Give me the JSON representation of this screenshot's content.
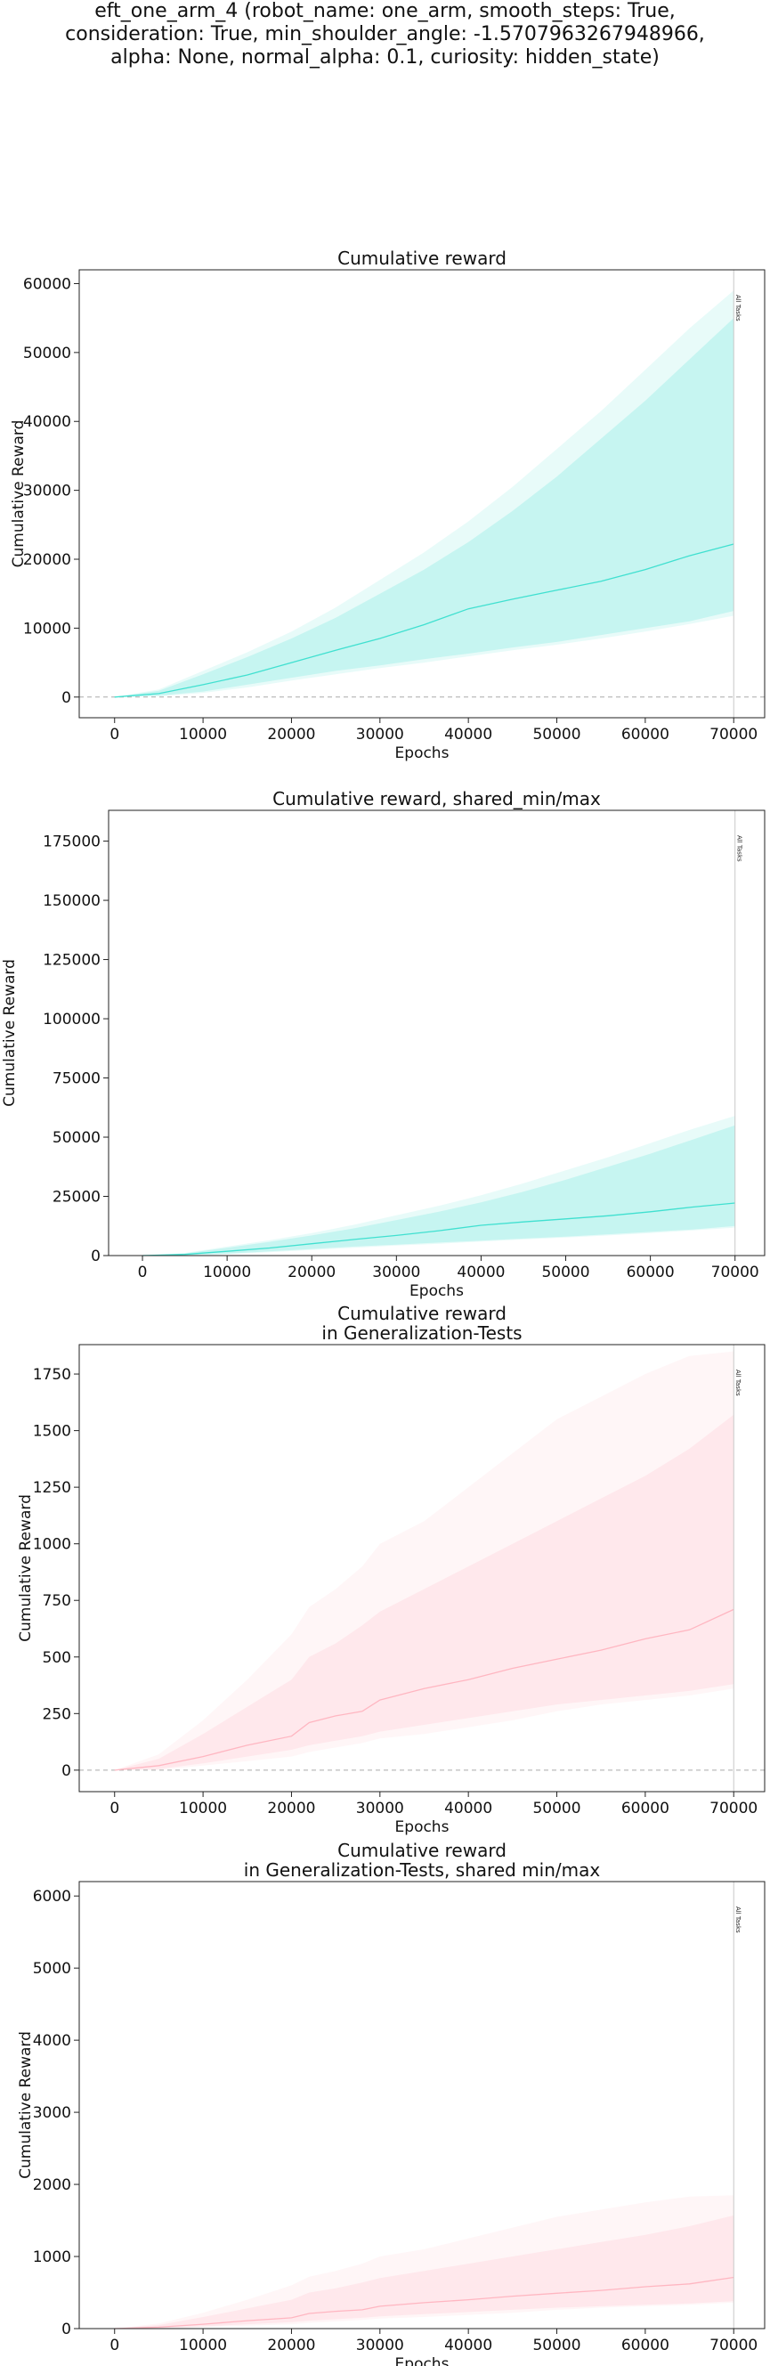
{
  "figure": {
    "title_lines": [
      "eft_one_arm_4 (robot_name: one_arm, smooth_steps: True,",
      "consideration: True, min_shoulder_angle: -1.5707963267948966,",
      "alpha: None, normal_alpha: 0.1, curiosity: hidden_state)"
    ]
  },
  "chart_data": [
    {
      "type": "line",
      "title": "Cumulative reward",
      "xlabel": "Epochs",
      "ylabel": "Cumulative Reward",
      "xlim": [
        -4000,
        73500
      ],
      "ylim": [
        -3000,
        62000
      ],
      "xticks": [
        0,
        10000,
        20000,
        30000,
        40000,
        50000,
        60000,
        70000
      ],
      "xtick_labels": [
        "0",
        "10000",
        "20000",
        "30000",
        "40000",
        "50000",
        "60000",
        "70000"
      ],
      "yticks": [
        0,
        10000,
        20000,
        30000,
        40000,
        50000,
        60000
      ],
      "ytick_labels": [
        "0",
        "10000",
        "20000",
        "30000",
        "40000",
        "50000",
        "60000"
      ],
      "hline": 0,
      "vline": {
        "x": 70000,
        "label": "All Tasks"
      },
      "color": "#40e0d0",
      "x": [
        0,
        5000,
        10000,
        15000,
        20000,
        25000,
        30000,
        35000,
        40000,
        45000,
        50000,
        55000,
        60000,
        65000,
        70000
      ],
      "series": [
        {
          "mean": [
            0,
            500,
            1800,
            3200,
            5000,
            6800,
            8500,
            10500,
            12800,
            14200,
            15500,
            16800,
            18500,
            20500,
            22200
          ],
          "band_inner": [
            [
              0,
              0
            ],
            [
              200,
              900
            ],
            [
              800,
              3300
            ],
            [
              1800,
              5800
            ],
            [
              2800,
              8500
            ],
            [
              3800,
              11500
            ],
            [
              4600,
              15000
            ],
            [
              5500,
              18500
            ],
            [
              6300,
              22500
            ],
            [
              7200,
              27000
            ],
            [
              8000,
              32000
            ],
            [
              9000,
              37500
            ],
            [
              10000,
              43000
            ],
            [
              11000,
              49000
            ],
            [
              12500,
              55000
            ]
          ],
          "band_outer": [
            [
              0,
              0
            ],
            [
              100,
              1100
            ],
            [
              600,
              3800
            ],
            [
              1400,
              6500
            ],
            [
              2400,
              9500
            ],
            [
              3300,
              13000
            ],
            [
              4200,
              17000
            ],
            [
              5000,
              21000
            ],
            [
              5900,
              25500
            ],
            [
              6800,
              30500
            ],
            [
              7600,
              36000
            ],
            [
              8500,
              41500
            ],
            [
              9500,
              47500
            ],
            [
              10600,
              53500
            ],
            [
              11800,
              59000
            ]
          ]
        }
      ]
    },
    {
      "type": "line",
      "title": "Cumulative reward, shared_min/max",
      "xlabel": "Epochs",
      "ylabel": "Cumulative Reward",
      "xlim": [
        -4000,
        73500
      ],
      "ylim": [
        0,
        188000
      ],
      "xticks": [
        0,
        10000,
        20000,
        30000,
        40000,
        50000,
        60000,
        70000
      ],
      "xtick_labels": [
        "0",
        "10000",
        "20000",
        "30000",
        "40000",
        "50000",
        "60000",
        "70000"
      ],
      "yticks": [
        0,
        25000,
        50000,
        75000,
        100000,
        125000,
        150000,
        175000
      ],
      "ytick_labels": [
        "0",
        "25000",
        "50000",
        "75000",
        "100000",
        "125000",
        "150000",
        "175000"
      ],
      "hline": null,
      "vline": {
        "x": 70000,
        "label": "All Tasks"
      },
      "color": "#40e0d0",
      "x": [
        0,
        5000,
        10000,
        15000,
        20000,
        25000,
        30000,
        35000,
        40000,
        45000,
        50000,
        55000,
        60000,
        65000,
        70000
      ],
      "series": [
        {
          "mean": [
            0,
            500,
            1800,
            3200,
            5000,
            6800,
            8500,
            10500,
            12800,
            14200,
            15500,
            16800,
            18500,
            20500,
            22200
          ],
          "band_inner": [
            [
              0,
              0
            ],
            [
              200,
              900
            ],
            [
              800,
              3300
            ],
            [
              1800,
              5800
            ],
            [
              2800,
              8500
            ],
            [
              3800,
              11500
            ],
            [
              4600,
              15000
            ],
            [
              5500,
              18500
            ],
            [
              6300,
              22500
            ],
            [
              7200,
              27000
            ],
            [
              8000,
              32000
            ],
            [
              9000,
              37500
            ],
            [
              10000,
              43000
            ],
            [
              11000,
              49000
            ],
            [
              12500,
              55000
            ]
          ],
          "band_outer": [
            [
              0,
              0
            ],
            [
              100,
              1100
            ],
            [
              600,
              3800
            ],
            [
              1400,
              6500
            ],
            [
              2400,
              9500
            ],
            [
              3300,
              13000
            ],
            [
              4200,
              17000
            ],
            [
              5000,
              21000
            ],
            [
              5900,
              25500
            ],
            [
              6800,
              30500
            ],
            [
              7600,
              36000
            ],
            [
              8500,
              41500
            ],
            [
              9500,
              47500
            ],
            [
              10600,
              53500
            ],
            [
              11800,
              59000
            ]
          ]
        }
      ]
    },
    {
      "type": "line",
      "title": "Cumulative reward\nin Generalization-Tests",
      "xlabel": "Epochs",
      "ylabel": "Cumulative Reward",
      "xlim": [
        -4000,
        73500
      ],
      "ylim": [
        -95,
        1880
      ],
      "xticks": [
        0,
        10000,
        20000,
        30000,
        40000,
        50000,
        60000,
        70000
      ],
      "xtick_labels": [
        "0",
        "10000",
        "20000",
        "30000",
        "40000",
        "50000",
        "60000",
        "70000"
      ],
      "yticks": [
        0,
        250,
        500,
        750,
        1000,
        1250,
        1500,
        1750
      ],
      "ytick_labels": [
        "0",
        "250",
        "500",
        "750",
        "1000",
        "1250",
        "1500",
        "1750"
      ],
      "hline": 0,
      "vline": {
        "x": 70000,
        "label": "All Tasks"
      },
      "color": "#ffb6c1",
      "x": [
        0,
        5000,
        10000,
        15000,
        20000,
        22000,
        25000,
        28000,
        30000,
        35000,
        40000,
        45000,
        50000,
        55000,
        60000,
        65000,
        70000
      ],
      "series": [
        {
          "mean": [
            0,
            20,
            60,
            110,
            150,
            210,
            240,
            260,
            310,
            360,
            400,
            450,
            490,
            530,
            580,
            620,
            710
          ],
          "band_inner": [
            [
              0,
              0
            ],
            [
              5,
              50
            ],
            [
              30,
              160
            ],
            [
              60,
              280
            ],
            [
              90,
              400
            ],
            [
              110,
              500
            ],
            [
              130,
              560
            ],
            [
              150,
              640
            ],
            [
              170,
              700
            ],
            [
              200,
              800
            ],
            [
              230,
              900
            ],
            [
              260,
              1000
            ],
            [
              290,
              1100
            ],
            [
              310,
              1200
            ],
            [
              330,
              1300
            ],
            [
              350,
              1420
            ],
            [
              380,
              1570
            ]
          ],
          "band_outer": [
            [
              0,
              0
            ],
            [
              0,
              70
            ],
            [
              20,
              220
            ],
            [
              40,
              400
            ],
            [
              60,
              600
            ],
            [
              80,
              720
            ],
            [
              100,
              800
            ],
            [
              120,
              900
            ],
            [
              140,
              1000
            ],
            [
              160,
              1100
            ],
            [
              190,
              1250
            ],
            [
              220,
              1400
            ],
            [
              260,
              1550
            ],
            [
              290,
              1650
            ],
            [
              310,
              1750
            ],
            [
              330,
              1830
            ],
            [
              360,
              1850
            ]
          ]
        }
      ]
    },
    {
      "type": "line",
      "title": "Cumulative reward\nin Generalization-Tests, shared min/max",
      "xlabel": "Epochs",
      "ylabel": "Cumulative Reward",
      "xlim": [
        -4000,
        73500
      ],
      "ylim": [
        0,
        6200
      ],
      "xticks": [
        0,
        10000,
        20000,
        30000,
        40000,
        50000,
        60000,
        70000
      ],
      "xtick_labels": [
        "0",
        "10000",
        "20000",
        "30000",
        "40000",
        "50000",
        "60000",
        "70000"
      ],
      "yticks": [
        0,
        1000,
        2000,
        3000,
        4000,
        5000,
        6000
      ],
      "ytick_labels": [
        "0",
        "1000",
        "2000",
        "3000",
        "4000",
        "5000",
        "6000"
      ],
      "hline": null,
      "vline": {
        "x": 70000,
        "label": "All Tasks"
      },
      "color": "#ffb6c1",
      "x": [
        0,
        5000,
        10000,
        15000,
        20000,
        22000,
        25000,
        28000,
        30000,
        35000,
        40000,
        45000,
        50000,
        55000,
        60000,
        65000,
        70000
      ],
      "series": [
        {
          "mean": [
            0,
            20,
            60,
            110,
            150,
            210,
            240,
            260,
            310,
            360,
            400,
            450,
            490,
            530,
            580,
            620,
            710
          ],
          "band_inner": [
            [
              0,
              0
            ],
            [
              5,
              50
            ],
            [
              30,
              160
            ],
            [
              60,
              280
            ],
            [
              90,
              400
            ],
            [
              110,
              500
            ],
            [
              130,
              560
            ],
            [
              150,
              640
            ],
            [
              170,
              700
            ],
            [
              200,
              800
            ],
            [
              230,
              900
            ],
            [
              260,
              1000
            ],
            [
              290,
              1100
            ],
            [
              310,
              1200
            ],
            [
              330,
              1300
            ],
            [
              350,
              1420
            ],
            [
              380,
              1570
            ]
          ],
          "band_outer": [
            [
              0,
              0
            ],
            [
              0,
              70
            ],
            [
              20,
              220
            ],
            [
              40,
              400
            ],
            [
              60,
              600
            ],
            [
              80,
              720
            ],
            [
              100,
              800
            ],
            [
              120,
              900
            ],
            [
              140,
              1000
            ],
            [
              160,
              1100
            ],
            [
              190,
              1250
            ],
            [
              220,
              1400
            ],
            [
              260,
              1550
            ],
            [
              290,
              1650
            ],
            [
              310,
              1750
            ],
            [
              330,
              1830
            ],
            [
              360,
              1850
            ]
          ]
        }
      ]
    }
  ]
}
